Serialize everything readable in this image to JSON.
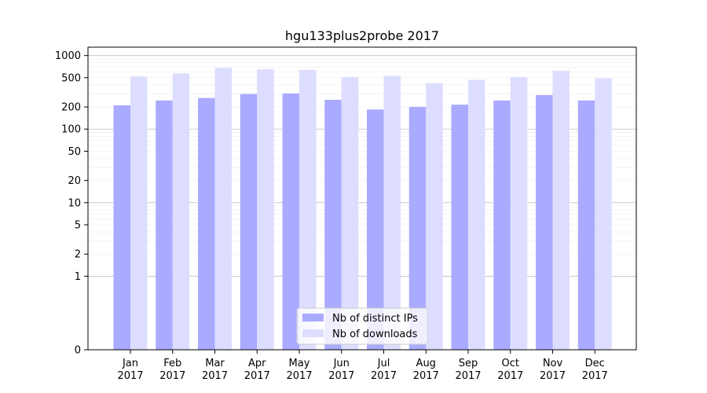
{
  "chart_data": {
    "type": "bar",
    "title": "hgu133plus2probe 2017",
    "xlabel": "",
    "ylabel": "",
    "yscale": "symlog",
    "ylim": [
      0,
      1300
    ],
    "yticks": [
      0,
      1,
      2,
      5,
      10,
      20,
      50,
      100,
      200,
      500,
      1000
    ],
    "grid": true,
    "legend_position": "bottom-center",
    "categories": [
      [
        "Jan",
        "2017"
      ],
      [
        "Feb",
        "2017"
      ],
      [
        "Mar",
        "2017"
      ],
      [
        "Apr",
        "2017"
      ],
      [
        "May",
        "2017"
      ],
      [
        "Jun",
        "2017"
      ],
      [
        "Jul",
        "2017"
      ],
      [
        "Aug",
        "2017"
      ],
      [
        "Sep",
        "2017"
      ],
      [
        "Oct",
        "2017"
      ],
      [
        "Nov",
        "2017"
      ],
      [
        "Dec",
        "2017"
      ]
    ],
    "series": [
      {
        "name": "Nb of distinct IPs",
        "color": "#aaaaff",
        "values": [
          210,
          245,
          265,
          300,
          305,
          250,
          185,
          200,
          215,
          245,
          290,
          245
        ]
      },
      {
        "name": "Nb of downloads",
        "color": "#ddddff",
        "values": [
          520,
          570,
          680,
          650,
          640,
          510,
          530,
          420,
          470,
          510,
          620,
          490
        ]
      }
    ]
  }
}
